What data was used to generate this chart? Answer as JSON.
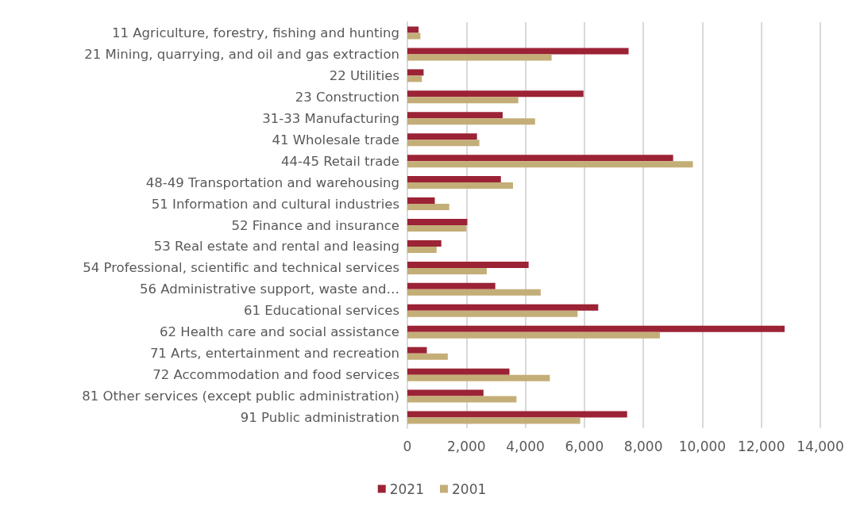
{
  "chart_data": {
    "type": "bar",
    "orientation": "horizontal",
    "categories": [
      "11 Agriculture, forestry, fishing and hunting",
      "21 Mining, quarrying, and oil and gas extraction",
      "22 Utilities",
      "23 Construction",
      "31-33 Manufacturing",
      "41 Wholesale trade",
      "44-45 Retail trade",
      "48-49 Transportation and warehousing",
      "51 Information and cultural industries",
      "52 Finance and insurance",
      "53 Real estate and rental and leasing",
      "54 Professional, scientific and technical services",
      "56 Administrative support, waste and…",
      "61 Educational services",
      "62 Health care and social assistance",
      "71 Arts, entertainment and recreation",
      "72 Accommodation and food services",
      "81 Other services (except public administration)",
      "91 Public administration"
    ],
    "series": [
      {
        "name": "2021",
        "color": "#9b2335",
        "values": [
          380,
          7500,
          550,
          5970,
          3230,
          2360,
          9010,
          3170,
          930,
          2030,
          1150,
          4110,
          2980,
          6470,
          12790,
          660,
          3460,
          2580,
          7450
        ]
      },
      {
        "name": "2001",
        "color": "#c4ae78",
        "values": [
          440,
          4890,
          490,
          3760,
          4330,
          2440,
          9680,
          3580,
          1420,
          2000,
          990,
          2690,
          4520,
          5770,
          8560,
          1370,
          4830,
          3700,
          5860
        ]
      }
    ],
    "xlim": [
      0,
      14000
    ],
    "xticks": [
      0,
      {
        "value": 2000,
        "label": "2,000"
      },
      {
        "value": 4000,
        "label": "4,000"
      },
      {
        "value": 6000,
        "label": "6,000"
      },
      {
        "value": 8000,
        "label": "8,000"
      },
      {
        "value": 10000,
        "label": "10,000"
      },
      {
        "value": 12000,
        "label": "12,000"
      },
      {
        "value": 14000,
        "label": "14,000"
      }
    ],
    "grid": "x",
    "legend": "bottom"
  }
}
